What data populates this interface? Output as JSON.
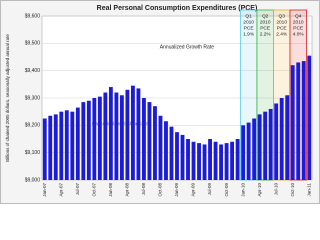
{
  "chart_data": {
    "type": "bar",
    "title": "Real Personal Consumption Expenditures (PCE)",
    "ylabel": "Billions of chained 2005 dollars, seasonally adjusted annual rate",
    "source": "www.calculatedriskblog.com",
    "annotation": "Annualized Growth Rate",
    "categories": [
      "Jan-07",
      null,
      null,
      "Apr-07",
      null,
      null,
      "Jul-07",
      null,
      null,
      "Oct-07",
      null,
      null,
      "Jan-08",
      null,
      null,
      "Apr-08",
      null,
      null,
      "Jul-08",
      null,
      null,
      "Oct-08",
      null,
      null,
      "Jan-09",
      null,
      null,
      "Apr-09",
      null,
      null,
      "Jul-09",
      null,
      null,
      "Oct-09",
      null,
      null,
      "Jan-10",
      null,
      null,
      "Apr-10",
      null,
      null,
      "Jul-10",
      null,
      null,
      "Oct-10",
      null,
      null,
      "Jan-11"
    ],
    "values": [
      9225,
      9235,
      9240,
      9250,
      9255,
      9250,
      9265,
      9285,
      9290,
      9300,
      9305,
      9320,
      9340,
      9320,
      9310,
      9330,
      9345,
      9335,
      9300,
      9285,
      9270,
      9235,
      9215,
      9195,
      9175,
      9165,
      9150,
      9140,
      9135,
      9130,
      9150,
      9140,
      9130,
      9135,
      9140,
      9150,
      9200,
      9210,
      9225,
      9240,
      9250,
      9260,
      9280,
      9300,
      9310,
      9420,
      9430,
      9435,
      9455
    ],
    "color": "#1c1cd8",
    "ylim": [
      9000,
      9600
    ],
    "yticks": [
      {
        "value": 9000,
        "label": "$9,000"
      },
      {
        "value": 9100,
        "label": "$9,100"
      },
      {
        "value": 9200,
        "label": "$9,200"
      },
      {
        "value": 9300,
        "label": "$9,300"
      },
      {
        "value": 9400,
        "label": "$9,400"
      },
      {
        "value": 9500,
        "label": "$9,500"
      },
      {
        "value": 9600,
        "label": "$9,600"
      }
    ],
    "grid": true,
    "highlights": [
      {
        "lines": [
          "Q1",
          "2010",
          "PCE",
          "1.9%"
        ],
        "color": "#5bc8e8",
        "span": [
          36,
          38
        ]
      },
      {
        "lines": [
          "Q2",
          "2010",
          "PCE",
          "2.2%"
        ],
        "color": "#3cb043",
        "span": [
          39,
          41
        ]
      },
      {
        "lines": [
          "Q3",
          "2010",
          "PCE",
          "2.4%"
        ],
        "color": "#e8b020",
        "span": [
          42,
          44
        ]
      },
      {
        "lines": [
          "Q4",
          "2010",
          "PCE",
          "4.0%"
        ],
        "color": "#e02020",
        "span": [
          45,
          47
        ]
      }
    ]
  }
}
